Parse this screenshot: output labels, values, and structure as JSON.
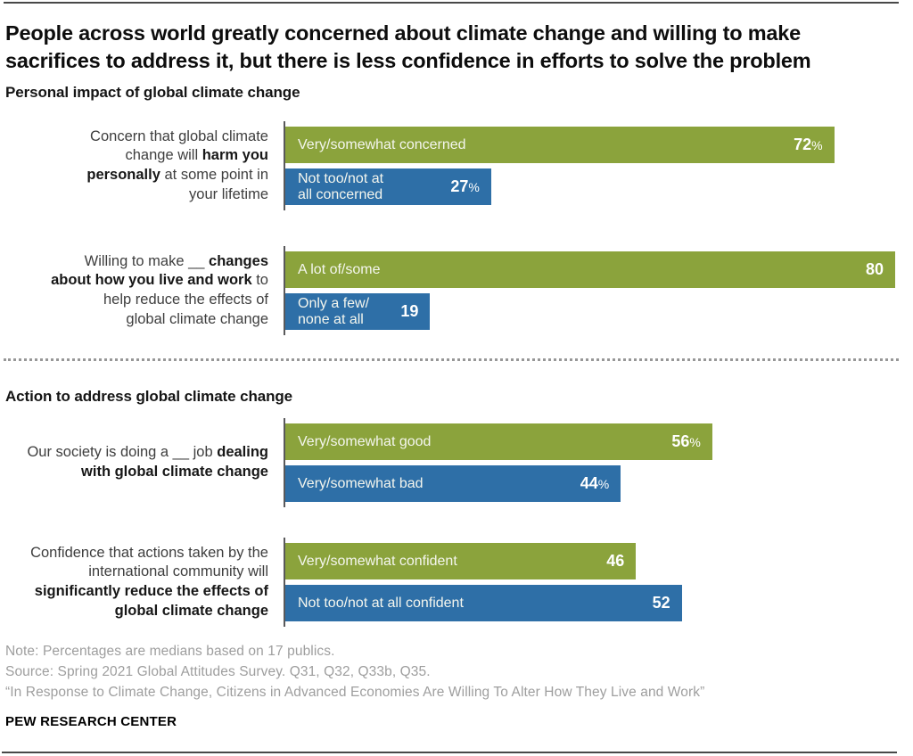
{
  "header": {
    "title": "People across world greatly concerned about climate change and willing to make\nsacrifices to address it, but there is less confidence in efforts to solve the problem"
  },
  "chart_data": {
    "type": "bar",
    "orientation": "horizontal",
    "x_max": 80,
    "xlim": [
      0,
      80
    ],
    "grid": false,
    "legend": "none",
    "colors": {
      "green": "#8ba33c",
      "blue": "#2e6fa7"
    },
    "sections": [
      {
        "heading": "Personal impact of global climate change",
        "questions": [
          {
            "label_segments": [
              {
                "text": "Concern that global climate\nchange will ",
                "bold": false
              },
              {
                "text": "harm you\npersonally",
                "bold": true
              },
              {
                "text": " at some point in\nyour lifetime",
                "bold": false
              }
            ],
            "bars": [
              {
                "label": "Very/somewhat concerned",
                "value": 72,
                "display": "72",
                "suffix": "%",
                "color": "green"
              },
              {
                "label": "Not too/not at\nall concerned",
                "value": 27,
                "display": "27",
                "suffix": "%",
                "color": "blue"
              }
            ]
          },
          {
            "label_segments": [
              {
                "text": "Willing to make __ ",
                "bold": false
              },
              {
                "text": "changes\nabout how you live and work",
                "bold": true
              },
              {
                "text": " to\nhelp reduce the effects of\nglobal climate change",
                "bold": false
              }
            ],
            "bars": [
              {
                "label": "A lot of/some",
                "value": 80,
                "display": "80",
                "suffix": "",
                "color": "green"
              },
              {
                "label": "Only a few/\nnone at all",
                "value": 19,
                "display": "19",
                "suffix": "",
                "color": "blue"
              }
            ]
          }
        ]
      },
      {
        "heading": "Action to address global climate change",
        "questions": [
          {
            "label_segments": [
              {
                "text": "Our society is doing a __ job ",
                "bold": false
              },
              {
                "text": "dealing\nwith global climate change",
                "bold": true
              }
            ],
            "bars": [
              {
                "label": "Very/somewhat good",
                "value": 56,
                "display": "56",
                "suffix": "%",
                "color": "green"
              },
              {
                "label": "Very/somewhat bad",
                "value": 44,
                "display": "44",
                "suffix": "%",
                "color": "blue"
              }
            ]
          },
          {
            "label_segments": [
              {
                "text": "Confidence that actions taken by the\ninternational community will\n",
                "bold": false
              },
              {
                "text": "significantly reduce the effects of\nglobal climate change",
                "bold": true
              }
            ],
            "bars": [
              {
                "label": "Very/somewhat confident",
                "value": 46,
                "display": "46",
                "suffix": "",
                "color": "green"
              },
              {
                "label": "Not too/not at all confident",
                "value": 52,
                "display": "52",
                "suffix": "",
                "color": "blue"
              }
            ]
          }
        ]
      }
    ]
  },
  "footer": {
    "note": "Note: Percentages are medians based on 17 publics.",
    "source": "Source: Spring 2021 Global Attitudes Survey. Q31, Q32, Q33b, Q35.",
    "report": "“In Response to Climate Change, Citizens in Advanced Economies Are Willing To Alter How They Live and Work”",
    "brand": "PEW RESEARCH CENTER"
  }
}
